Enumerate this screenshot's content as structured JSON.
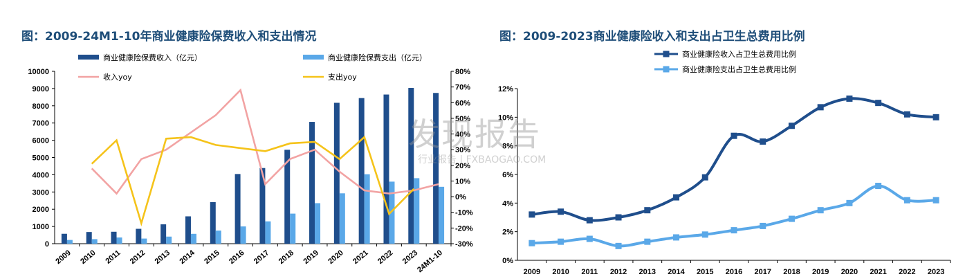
{
  "chart_data": [
    {
      "type": "bar+line",
      "title": "图：2009-24M1-10年商业健康险保费收入和支出情况",
      "categories": [
        "2009",
        "2010",
        "2011",
        "2012",
        "2013",
        "2014",
        "2015",
        "2016",
        "2017",
        "2018",
        "2019",
        "2020",
        "2021",
        "2022",
        "2023",
        "24M1-10"
      ],
      "left_ylim": [
        0,
        10000
      ],
      "left_yticks": [
        "0",
        "1000",
        "2000",
        "3000",
        "4000",
        "5000",
        "6000",
        "7000",
        "8000",
        "9000",
        "10000"
      ],
      "right_ylim": [
        -30,
        80
      ],
      "right_yticks": [
        "-30%",
        "-20%",
        "-10%",
        "0%",
        "10%",
        "20%",
        "30%",
        "40%",
        "50%",
        "60%",
        "70%",
        "80%"
      ],
      "series": [
        {
          "name": "商业健康险保费收入（亿元）",
          "kind": "bar",
          "color": "#1f4e8c",
          "values": [
            574,
            677,
            692,
            863,
            1123,
            1587,
            2410,
            4042,
            4389,
            5448,
            7066,
            8173,
            8447,
            8653,
            9035,
            8745
          ]
        },
        {
          "name": "商业健康险保费支出（亿元）",
          "kind": "bar",
          "color": "#5aa8e8",
          "values": [
            217,
            264,
            360,
            298,
            411,
            571,
            763,
            1001,
            1295,
            1744,
            2351,
            2921,
            4029,
            3600,
            3800,
            3300
          ]
        },
        {
          "name": "收入yoy",
          "kind": "line",
          "axis": "right",
          "color": "#f2a3a3",
          "values": [
            null,
            18,
            2,
            24,
            30,
            41,
            52,
            68,
            8,
            24,
            30,
            16,
            4,
            2,
            4,
            8
          ]
        },
        {
          "name": "支出yoy",
          "kind": "line",
          "axis": "right",
          "color": "#f5c31a",
          "values": [
            null,
            21,
            36,
            -17,
            37,
            38,
            33,
            31,
            29,
            34,
            35,
            24,
            38,
            -11,
            5,
            null
          ]
        }
      ],
      "legend": "top"
    },
    {
      "type": "line",
      "title": "图：2009-2023商业健康险收入和支出占卫生总费用比例",
      "categories": [
        "2009",
        "2010",
        "2011",
        "2012",
        "2013",
        "2014",
        "2015",
        "2016",
        "2017",
        "2018",
        "2019",
        "2020",
        "2021",
        "2022",
        "2023"
      ],
      "ylim": [
        0,
        12
      ],
      "yticks": [
        "0%",
        "2%",
        "4%",
        "6%",
        "8%",
        "10%",
        "12%"
      ],
      "series": [
        {
          "name": "商业健康险收入占卫生总费用比例",
          "color": "#1f4e8c",
          "values": [
            3.2,
            3.4,
            2.8,
            3.0,
            3.5,
            4.4,
            5.8,
            8.7,
            8.3,
            9.4,
            10.7,
            11.3,
            11.0,
            10.2,
            10.0
          ]
        },
        {
          "name": "商业健康险支出占卫生总费用比例",
          "color": "#5aa8e8",
          "values": [
            1.2,
            1.3,
            1.5,
            1.0,
            1.3,
            1.6,
            1.8,
            2.1,
            2.4,
            2.9,
            3.5,
            4.0,
            5.2,
            4.2,
            4.2
          ]
        }
      ],
      "legend": "top"
    }
  ],
  "watermark": {
    "text": "发现报告",
    "subtext": "行业报告 | FXBAOGAO.COM"
  }
}
